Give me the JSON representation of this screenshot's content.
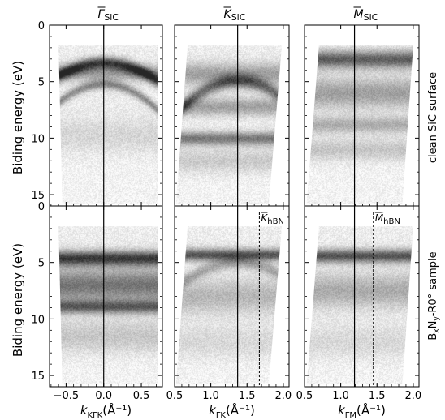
{
  "chart_data": {
    "type": "heatmap",
    "description_kind": "ARPES panels",
    "row_labels": [
      "clean SiC surface",
      "B_xN_y-R0° sample"
    ],
    "row_label_parts": [
      {
        "text": "clean SiC surface"
      },
      {
        "prefix": "B",
        "sub1": "x",
        "mid": "N",
        "sub2": "y",
        "suffix": "-R0° sample"
      }
    ],
    "ylabel": "Biding energy (eV)",
    "ylim": [
      0,
      16
    ],
    "y_inverted": true,
    "yticks": [
      0,
      5,
      10,
      15
    ],
    "columns": [
      {
        "title_main": "Γ",
        "title_sub": "SiC",
        "xlabel_main": "k",
        "xlabel_sub": "KΓK",
        "xlabel_unit": "(Å⁻¹)",
        "xlim": [
          -0.72,
          0.78
        ],
        "xticks": [
          -0.5,
          0.0,
          0.5
        ],
        "xtick_labels": [
          "−0.5",
          "0.0",
          "0.5"
        ],
        "vline_solid": 0.0,
        "vline_dashed": null,
        "dashed_label_main": null,
        "dashed_label_sub": null,
        "data_region_top": [
          [
            -0.6,
            1.8
          ],
          [
            0.72,
            1.8
          ]
        ],
        "data_region_bottom": [
          [
            -0.55,
            15.8
          ],
          [
            0.72,
            15.8
          ]
        ]
      },
      {
        "title_main": "K",
        "title_sub": "SiC",
        "xlabel_main": "k",
        "xlabel_sub": "ΓK",
        "xlabel_unit": "(Å⁻¹)",
        "xlim": [
          0.5,
          2.08
        ],
        "xticks": [
          0.5,
          1.0,
          1.5,
          2.0
        ],
        "xtick_labels": [
          "0.5",
          "1.0",
          "1.5",
          "2.0"
        ],
        "vline_solid": 1.37,
        "vline_dashed": 1.67,
        "dashed_label_main": "K",
        "dashed_label_sub": "hBN",
        "data_region_top": [
          [
            0.68,
            1.8
          ],
          [
            1.98,
            1.8
          ]
        ],
        "data_region_bottom": [
          [
            0.52,
            15.8
          ],
          [
            1.8,
            15.8
          ]
        ]
      },
      {
        "title_main": "M",
        "title_sub": "SiC",
        "xlabel_main": "k",
        "xlabel_sub": "ΓM",
        "xlabel_unit": "(Å⁻¹)",
        "xlim": [
          0.5,
          2.08
        ],
        "xticks": [
          0.5,
          1.0,
          1.5,
          2.0
        ],
        "xtick_labels": [
          "0.5",
          "1.0",
          "1.5",
          "2.0"
        ],
        "vline_solid": 1.19,
        "vline_dashed": 1.45,
        "dashed_label_main": "M",
        "dashed_label_sub": "hBN",
        "data_region_top": [
          [
            0.7,
            1.8
          ],
          [
            2.0,
            1.8
          ]
        ],
        "data_region_bottom": [
          [
            0.53,
            15.8
          ],
          [
            1.85,
            15.8
          ]
        ]
      }
    ],
    "bands": {
      "r0": [
        {
          "shape": "dome",
          "center_k": 0.0,
          "top_e": 3.3,
          "curv": 3.2,
          "width": 0.9,
          "strength": 0.75
        },
        {
          "shape": "dome",
          "center_k": 0.0,
          "top_e": 5.2,
          "curv": 4.5,
          "width": 0.7,
          "strength": 0.45
        },
        {
          "shape": "flat",
          "e": 4.2,
          "width": 1.2,
          "strength": 0.35
        },
        {
          "shape": "flat",
          "e": 9.8,
          "width": 2.5,
          "strength": 0.12
        }
      ],
      "r1": [
        {
          "shape": "flat",
          "e": 4.3,
          "width": 1.6,
          "strength": 0.35
        },
        {
          "shape": "dome",
          "center_k": 1.37,
          "top_e": 4.9,
          "curv": 4.0,
          "width": 1.0,
          "strength": 0.55
        },
        {
          "shape": "flat",
          "e": 7.2,
          "width": 1.3,
          "strength": 0.35
        },
        {
          "shape": "flat",
          "e": 10.0,
          "width": 1.0,
          "strength": 0.55
        },
        {
          "shape": "flat",
          "e": 12.0,
          "width": 1.8,
          "strength": 0.18
        }
      ],
      "r2": [
        {
          "shape": "flat",
          "e": 3.0,
          "width": 1.3,
          "strength": 0.65
        },
        {
          "shape": "flat",
          "e": 6.0,
          "width": 2.2,
          "strength": 0.35
        },
        {
          "shape": "flat",
          "e": 8.8,
          "width": 1.2,
          "strength": 0.3
        },
        {
          "shape": "flat",
          "e": 11.0,
          "width": 1.6,
          "strength": 0.2
        }
      ],
      "r3": [
        {
          "shape": "flat",
          "e": 4.6,
          "width": 1.1,
          "strength": 0.8
        },
        {
          "shape": "flat",
          "e": 7.0,
          "width": 2.4,
          "strength": 0.55
        },
        {
          "shape": "flat",
          "e": 8.9,
          "width": 1.0,
          "strength": 0.6
        },
        {
          "shape": "flat",
          "e": 11.5,
          "width": 2.5,
          "strength": 0.2
        }
      ],
      "r4": [
        {
          "shape": "flat",
          "e": 4.3,
          "width": 0.9,
          "strength": 0.7
        },
        {
          "shape": "dome",
          "center_k": 1.37,
          "top_e": 5.0,
          "curv": 3.0,
          "width": 0.9,
          "strength": 0.3
        },
        {
          "shape": "flat",
          "e": 8.0,
          "width": 2.5,
          "strength": 0.25
        },
        {
          "shape": "flat",
          "e": 12.0,
          "width": 2.5,
          "strength": 0.12
        }
      ],
      "r5": [
        {
          "shape": "flat",
          "e": 4.4,
          "width": 1.0,
          "strength": 0.7
        },
        {
          "shape": "flat",
          "e": 7.5,
          "width": 2.5,
          "strength": 0.3
        },
        {
          "shape": "flat",
          "e": 12.0,
          "width": 2.5,
          "strength": 0.12
        }
      ]
    }
  }
}
